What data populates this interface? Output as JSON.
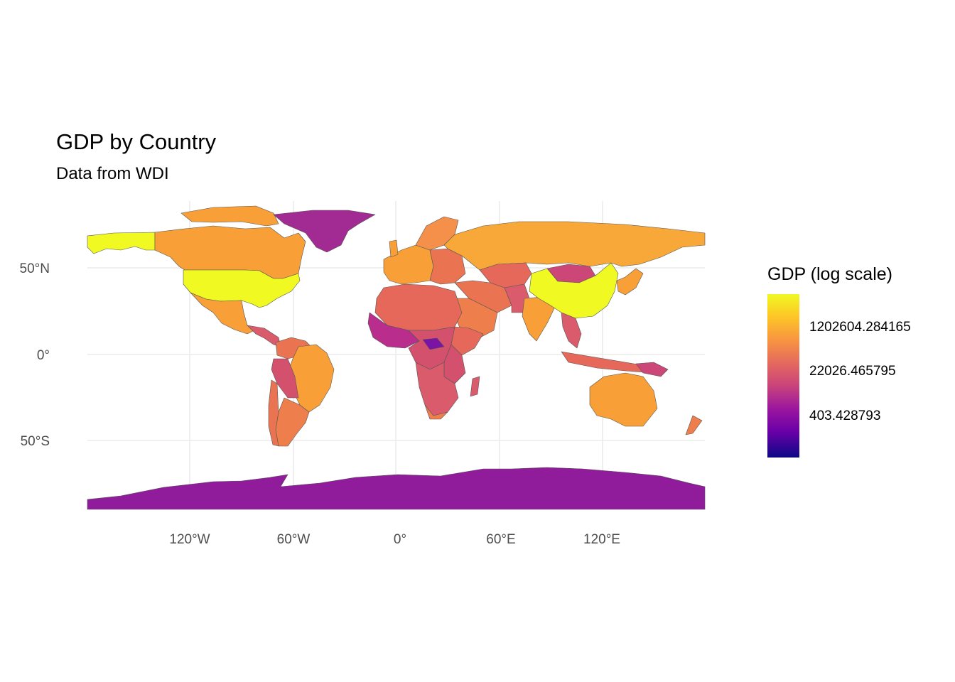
{
  "title": "GDP by Country",
  "subtitle": "Data from WDI",
  "chart_data": {
    "type": "choropleth map",
    "projection": "equirectangular (longitude/latitude)",
    "x_ticks": [
      "120°W",
      "60°W",
      "0°",
      "60°E",
      "120°E"
    ],
    "y_ticks": [
      "50°N",
      "0°",
      "50°S"
    ],
    "grid": true,
    "legend": {
      "title": "GDP (log scale)",
      "position": "right",
      "scale": "log",
      "labels": [
        "1202604.284165",
        "22026.465795",
        "403.428793"
      ],
      "colormap": "plasma",
      "colors": [
        "#0d0887",
        "#6a00a8",
        "#9c179e",
        "#cc4778",
        "#e16462",
        "#f89540",
        "#fdc527",
        "#f0f921"
      ]
    },
    "regions": [
      {
        "name": "United States",
        "level": "highest"
      },
      {
        "name": "China",
        "level": "highest"
      },
      {
        "name": "Alaska",
        "level": "highest"
      },
      {
        "name": "Canada",
        "level": "high"
      },
      {
        "name": "Russia",
        "level": "high"
      },
      {
        "name": "Brazil",
        "level": "high"
      },
      {
        "name": "India",
        "level": "high"
      },
      {
        "name": "Australia",
        "level": "high"
      },
      {
        "name": "Western Europe",
        "level": "high"
      },
      {
        "name": "Mexico",
        "level": "high"
      },
      {
        "name": "Argentina",
        "level": "medium-high"
      },
      {
        "name": "Middle East",
        "level": "medium-high"
      },
      {
        "name": "Central Asia",
        "level": "medium"
      },
      {
        "name": "Africa",
        "level": "medium-low"
      },
      {
        "name": "Mongolia",
        "level": "medium-low"
      },
      {
        "name": "Greenland",
        "level": "low"
      },
      {
        "name": "Antarctica",
        "level": "low"
      },
      {
        "name": "Central African Republic",
        "level": "lowest"
      }
    ]
  }
}
